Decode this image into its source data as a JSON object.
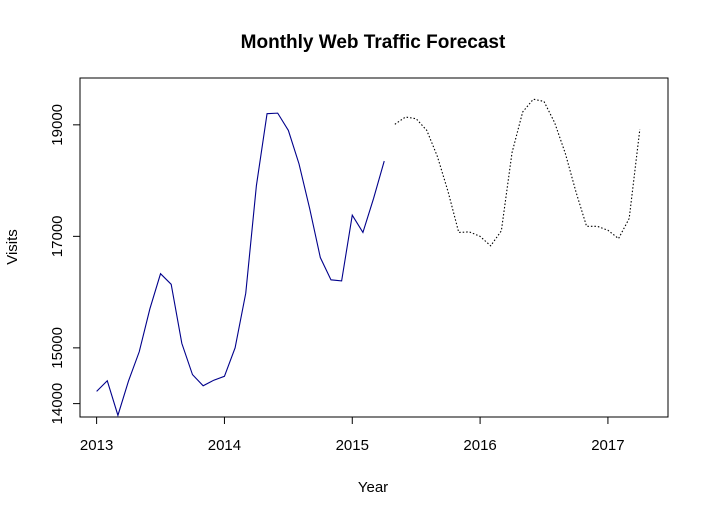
{
  "chart_data": {
    "type": "line",
    "title": "Monthly Web Traffic Forecast",
    "xlabel": "Year",
    "ylabel": "Visits",
    "xlim": [
      2012.87,
      2017.47
    ],
    "ylim": [
      13760,
      19840
    ],
    "x_ticks": [
      2013,
      2014,
      2015,
      2016,
      2017
    ],
    "y_ticks": [
      14000,
      15000,
      17000,
      19000
    ],
    "grid": false,
    "series": [
      {
        "style": "solid",
        "color": "#00008B",
        "x_start": 2013.0,
        "x_step_months": 1,
        "values": [
          14220,
          14410,
          13790,
          14410,
          14930,
          15700,
          16330,
          16140,
          15080,
          14520,
          14320,
          14420,
          14490,
          15000,
          15980,
          17910,
          19200,
          19210,
          18900,
          18300,
          17500,
          16620,
          16220,
          16200,
          17380,
          17070,
          17680,
          18350
        ]
      },
      {
        "style": "dotted",
        "color": "#000000",
        "x_start": 2015.333,
        "x_step_months": 1,
        "values": [
          19010,
          19140,
          19110,
          18900,
          18430,
          17800,
          17070,
          17080,
          17000,
          16830,
          17100,
          18500,
          19230,
          19460,
          19420,
          19040,
          18490,
          17800,
          17180,
          17180,
          17110,
          16960,
          17320,
          18920
        ]
      }
    ]
  }
}
